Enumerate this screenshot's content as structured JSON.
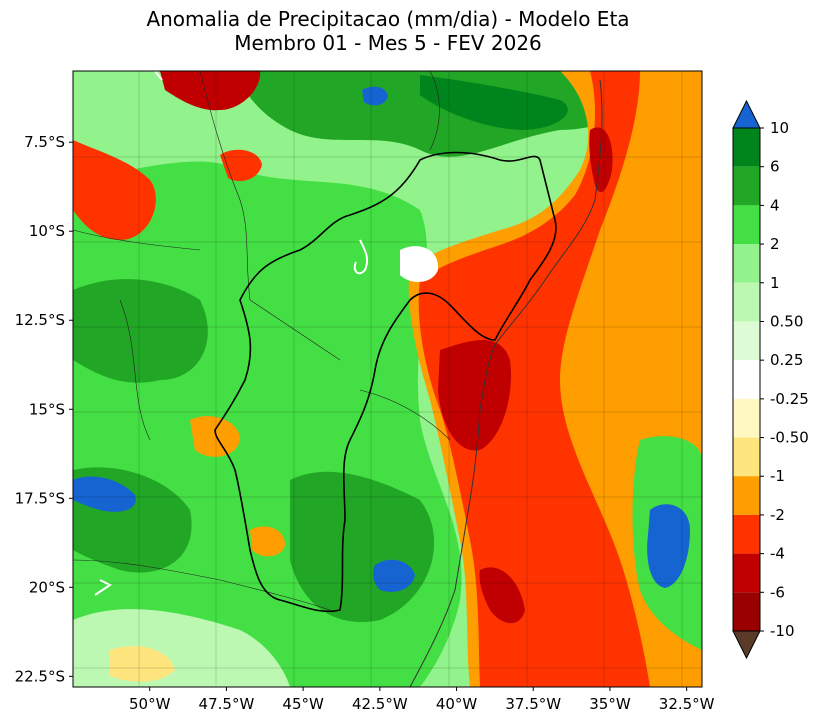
{
  "title": {
    "line1": "Anomalia de Precipitacao (mm/dia) - Modelo Eta",
    "line2": "Membro 01 - Mes 5 - FEV 2026"
  },
  "map": {
    "lon_range": [
      -52.5,
      -32.0
    ],
    "lat_range": [
      -22.8,
      -5.5
    ],
    "x_ticks": [
      {
        "value": -50.0,
        "label": "50°W"
      },
      {
        "value": -47.5,
        "label": "47.5°W"
      },
      {
        "value": -45.0,
        "label": "45°W"
      },
      {
        "value": -42.5,
        "label": "42.5°W"
      },
      {
        "value": -40.0,
        "label": "40°W"
      },
      {
        "value": -37.5,
        "label": "37.5°W"
      },
      {
        "value": -35.0,
        "label": "35°W"
      },
      {
        "value": -32.5,
        "label": "32.5°W"
      }
    ],
    "y_ticks": [
      {
        "value": -7.5,
        "label": "7.5°S"
      },
      {
        "value": -10.0,
        "label": "10°S"
      },
      {
        "value": -12.5,
        "label": "12.5°S"
      },
      {
        "value": -15.0,
        "label": "15°S"
      },
      {
        "value": -17.5,
        "label": "17.5°S"
      },
      {
        "value": -20.0,
        "label": "20°S"
      },
      {
        "value": -22.5,
        "label": "22.5°S"
      }
    ],
    "grid": true
  },
  "colorbar": {
    "levels": [
      {
        "label": "10",
        "color": "#00851c"
      },
      {
        "label": "6",
        "color": "#21a625"
      },
      {
        "label": "4",
        "color": "#44df44"
      },
      {
        "label": "2",
        "color": "#92f28b"
      },
      {
        "label": "1",
        "color": "#bcf8b2"
      },
      {
        "label": "0.50",
        "color": "#ddfcd6"
      },
      {
        "label": "0.25",
        "color": "#ffffff"
      },
      {
        "label": "-0.25",
        "color": "#fff9c1"
      },
      {
        "label": "-0.50",
        "color": "#ffe57e"
      },
      {
        "label": "-1",
        "color": "#ff9e00"
      },
      {
        "label": "-2",
        "color": "#ff3300"
      },
      {
        "label": "-4",
        "color": "#c00000"
      },
      {
        "label": "-6",
        "color": "#990000"
      },
      {
        "label": "-10",
        "color": null
      }
    ],
    "over_color": "#1564d1",
    "under_color": "#5a3b2a"
  },
  "colors": {
    "blue": "#1564d1",
    "dark_green": "#00851c",
    "green": "#21a625",
    "light_green": "#44df44",
    "pale_green": "#92f28b",
    "paler_green": "#bcf8b2",
    "yellow": "#ffe57e",
    "orange": "#ff9e00",
    "red_orange": "#ff3300",
    "red": "#c00000",
    "dark_red": "#990000"
  }
}
